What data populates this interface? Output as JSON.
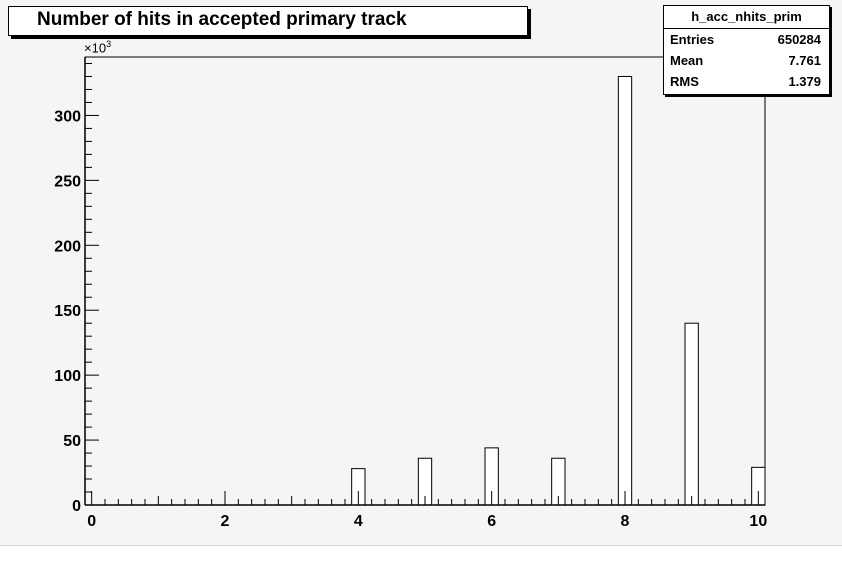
{
  "title": "Number of hits in accepted primary track",
  "stats": {
    "name": "h_acc_nhits_prim",
    "rows": [
      {
        "key": "Entries",
        "value": "650284"
      },
      {
        "key": "Mean",
        "value": "7.761"
      },
      {
        "key": "RMS",
        "value": "1.379"
      }
    ]
  },
  "axis_multiplier": {
    "base": "×10",
    "exponent": "3"
  },
  "chart_data": {
    "type": "bar",
    "title": "Number of hits in accepted primary track",
    "xlabel": "",
    "ylabel": "",
    "xlim": [
      -0.1,
      10.1
    ],
    "ylim": [
      0,
      345
    ],
    "x_ticks": [
      "0",
      "2",
      "4",
      "6",
      "8",
      "10"
    ],
    "y_ticks": [
      "0",
      "50",
      "100",
      "150",
      "200",
      "250",
      "300"
    ],
    "bin_width": 0.2,
    "categories": [
      "0",
      "4",
      "5",
      "6",
      "7",
      "8",
      "9",
      "10"
    ],
    "x": [
      0,
      4,
      5,
      6,
      7,
      8,
      9,
      10
    ],
    "values": [
      0,
      28,
      36,
      44,
      36,
      330,
      140,
      29
    ],
    "grid": false,
    "legend": "none",
    "colors": {
      "bar_fill": "#ffffff",
      "bar_stroke": "#000000",
      "frame": "#000000",
      "background": "#f5f5f5"
    }
  }
}
